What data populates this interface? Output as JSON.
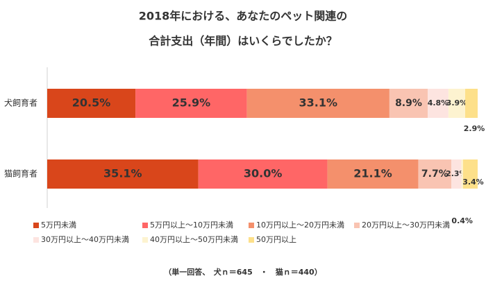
{
  "chart_data": {
    "type": "stacked-bar-horizontal",
    "title": [
      "2018年における、あなたのペット関連の",
      "合計支出（年間）はいくらでしたか？"
    ],
    "categories": [
      "犬飼育者",
      "猫飼育者"
    ],
    "xlim": [
      0,
      100
    ],
    "series": [
      {
        "name": "5万円未満",
        "color": "#d9461b",
        "values": [
          20.5,
          35.1
        ],
        "value_labels": [
          "20.5%",
          "35.1%"
        ]
      },
      {
        "name": "5万円以上～10万円未満",
        "color": "#ff6666",
        "values": [
          25.9,
          30.0
        ],
        "value_labels": [
          "25.9%",
          "30.0%"
        ]
      },
      {
        "name": "10万円以上～20万円未満",
        "color": "#f4906c",
        "values": [
          33.1,
          21.1
        ],
        "value_labels": [
          "33.1%",
          "21.1%"
        ]
      },
      {
        "name": "20万円以上～30万円未満",
        "color": "#f9c4b2",
        "values": [
          8.9,
          7.7
        ],
        "value_labels": [
          "8.9%",
          "7.7%"
        ]
      },
      {
        "name": "30万円以上～40万円未満",
        "color": "#fde4e0",
        "values": [
          4.8,
          2.3
        ],
        "value_labels": [
          "4.8%",
          "2.3%"
        ]
      },
      {
        "name": "40万円以上～50万円未満",
        "color": "#fdf3d0",
        "values": [
          3.9,
          0.4
        ],
        "value_labels": [
          "3.9%",
          "0.4%"
        ]
      },
      {
        "name": "50万円以上",
        "color": "#fde08a",
        "values": [
          2.9,
          3.4
        ],
        "value_labels": [
          "2.9%",
          "3.4%"
        ]
      }
    ],
    "note": "（単一回答、　犬ｎ＝645　・　猫ｎ＝440）"
  }
}
